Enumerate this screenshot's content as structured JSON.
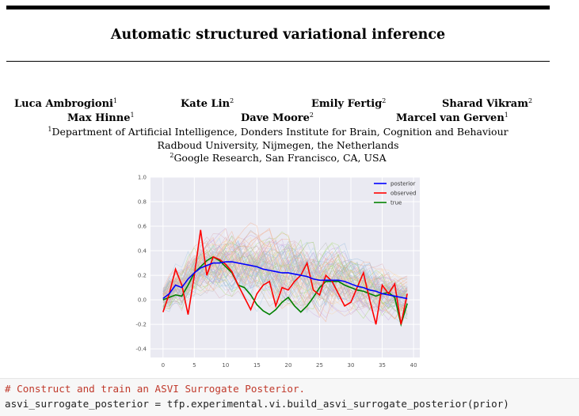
{
  "title": "Automatic structured variational inference",
  "authors": [
    {
      "name": "Luca Ambrogioni",
      "sup": "1"
    },
    {
      "name": "Kate Lin",
      "sup": "2"
    },
    {
      "name": "Emily Fertig",
      "sup": "2"
    },
    {
      "name": "Sharad Vikram",
      "sup": "2"
    },
    {
      "name": "Max Hinne",
      "sup": "1"
    },
    {
      "name": "Dave Moore",
      "sup": "2"
    },
    {
      "name": "Marcel van Gerven",
      "sup": "1"
    }
  ],
  "affiliations": [
    {
      "sup": "1",
      "text": "Department of Artificial Intelligence, Donders Institute for Brain, Cognition and Behaviour"
    },
    {
      "sup": "",
      "text": "Radboud University, Nijmegen, the Netherlands"
    },
    {
      "sup": "2",
      "text": "Google Research, San Francisco, CA, USA"
    }
  ],
  "chart_data": {
    "type": "line",
    "title": "",
    "xlabel": "",
    "ylabel": "",
    "xlim": [
      -2,
      41
    ],
    "ylim": [
      -0.47,
      1.0
    ],
    "x_ticks": [
      0,
      5,
      10,
      15,
      20,
      25,
      30,
      35,
      40
    ],
    "y_ticks": [
      1.0,
      0.8,
      0.6,
      0.4,
      0.2,
      0.0,
      -0.2,
      -0.4
    ],
    "grid": true,
    "legend_position": "top-right",
    "x": [
      0,
      1,
      2,
      3,
      4,
      5,
      6,
      7,
      8,
      9,
      10,
      11,
      12,
      13,
      14,
      15,
      16,
      17,
      18,
      19,
      20,
      21,
      22,
      23,
      24,
      25,
      26,
      27,
      28,
      29,
      30,
      31,
      32,
      33,
      34,
      35,
      36,
      37,
      38,
      39
    ],
    "series": [
      {
        "name": "posterior",
        "color": "#0000ff",
        "values": [
          0.01,
          0.05,
          0.12,
          0.1,
          0.17,
          0.22,
          0.26,
          0.28,
          0.3,
          0.3,
          0.31,
          0.31,
          0.3,
          0.29,
          0.28,
          0.27,
          0.25,
          0.24,
          0.23,
          0.22,
          0.22,
          0.21,
          0.2,
          0.19,
          0.17,
          0.16,
          0.16,
          0.16,
          0.16,
          0.15,
          0.13,
          0.11,
          0.1,
          0.08,
          0.07,
          0.05,
          0.04,
          0.03,
          0.02,
          0.01
        ]
      },
      {
        "name": "observed",
        "color": "#ff0000",
        "values": [
          -0.1,
          0.05,
          0.25,
          0.12,
          -0.12,
          0.2,
          0.57,
          0.2,
          0.35,
          0.33,
          0.29,
          0.23,
          0.12,
          0.02,
          -0.08,
          0.05,
          0.12,
          0.15,
          -0.05,
          0.1,
          0.08,
          0.15,
          0.2,
          0.3,
          0.08,
          0.04,
          0.2,
          0.15,
          0.05,
          -0.05,
          -0.02,
          0.1,
          0.22,
          0.0,
          -0.2,
          0.12,
          0.05,
          0.13,
          -0.2,
          0.05
        ]
      },
      {
        "name": "true",
        "color": "#008000",
        "values": [
          0.0,
          0.02,
          0.04,
          0.03,
          0.12,
          0.22,
          0.27,
          0.32,
          0.35,
          0.32,
          0.27,
          0.22,
          0.12,
          0.1,
          0.04,
          -0.04,
          -0.09,
          -0.12,
          -0.08,
          -0.02,
          0.02,
          -0.05,
          -0.1,
          -0.05,
          0.02,
          0.1,
          0.15,
          0.15,
          0.15,
          0.12,
          0.1,
          0.08,
          0.07,
          0.05,
          0.03,
          0.05,
          0.06,
          0.02,
          -0.2,
          -0.03
        ]
      }
    ]
  },
  "code": {
    "comment": "# Construct and train an ASVI Surrogate Posterior.",
    "line2": "asvi_surrogate_posterior = tfp.experimental.vi.build_asvi_surrogate_posterior(prior)"
  },
  "colors": {
    "background": "#ffffff",
    "code_bg": "#f7f7f7",
    "comment": "#c0392b",
    "plot_bg": "#eaeaf2"
  }
}
